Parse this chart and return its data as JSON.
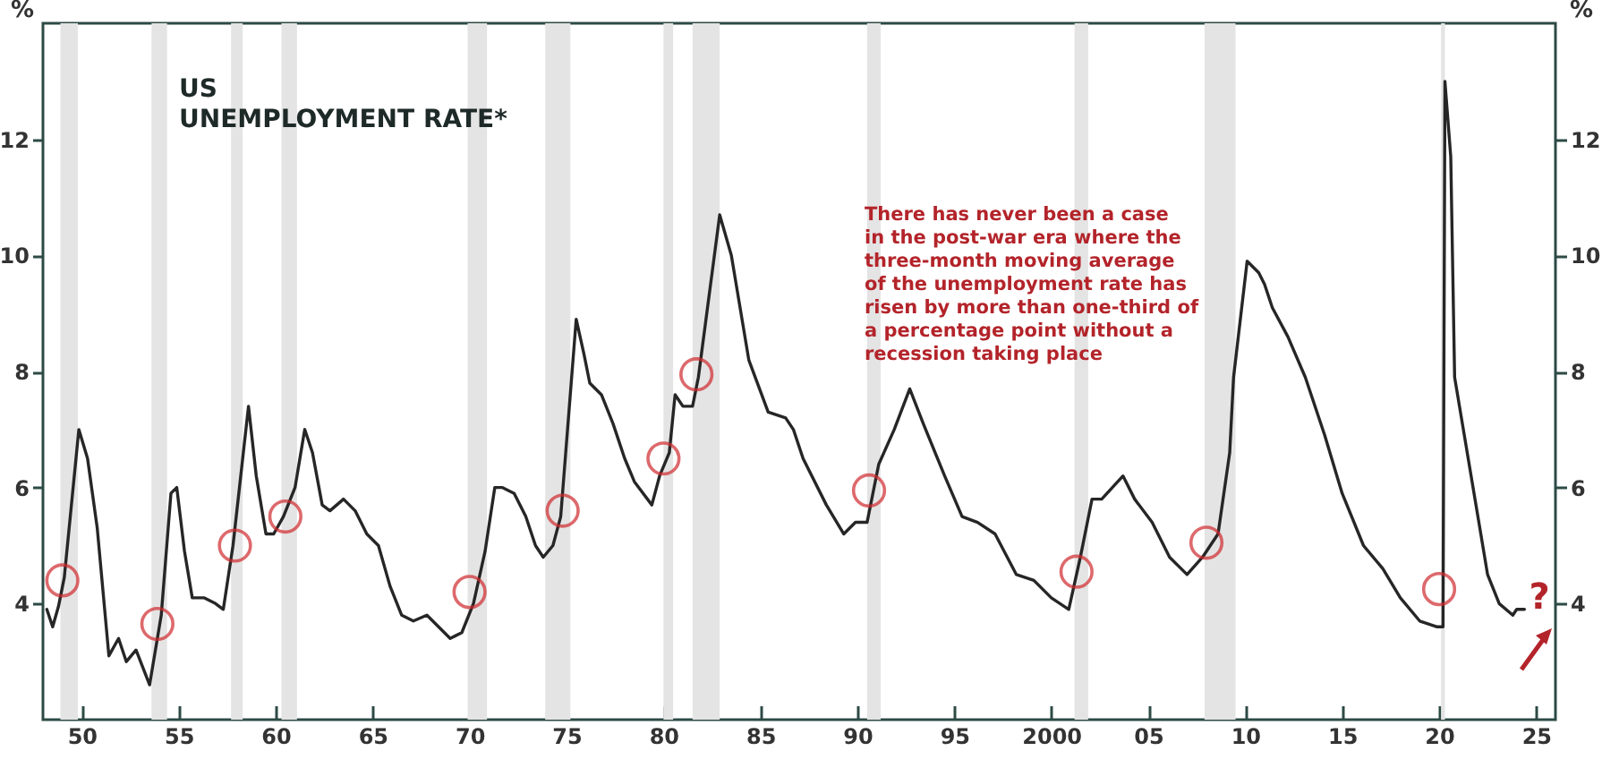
{
  "chart_data": {
    "type": "line",
    "title": "US\nUNEMPLOYMENT RATE*",
    "ylabel": "%",
    "y2label": "%",
    "series": [
      {
        "color": "#262626",
        "line_style": "solid",
        "x": [
          1948.2,
          1948.5,
          1948.8,
          1949.1,
          1949.85,
          1950.3,
          1950.8,
          1951.4,
          1951.9,
          1952.3,
          1952.8,
          1953.5,
          1953.8,
          1954.1,
          1954.6,
          1954.9,
          1955.3,
          1955.7,
          1956.3,
          1956.9,
          1957.3,
          1957.8,
          1958.6,
          1959.0,
          1959.5,
          1959.9,
          1960.4,
          1961.0,
          1961.5,
          1961.9,
          1962.4,
          1962.8,
          1963.5,
          1964.1,
          1964.7,
          1965.3,
          1965.9,
          1966.5,
          1967.1,
          1967.8,
          1968.4,
          1969.0,
          1969.6,
          1970.2,
          1970.8,
          1971.3,
          1971.7,
          1972.3,
          1972.9,
          1973.4,
          1973.8,
          1974.3,
          1974.7,
          1975.5,
          1975.9,
          1976.2,
          1976.8,
          1977.4,
          1978.0,
          1978.5,
          1979.4,
          1979.8,
          1980.3,
          1980.6,
          1981.0,
          1981.5,
          1981.8,
          1982.9,
          1983.5,
          1984.4,
          1985.4,
          1986.3,
          1986.7,
          1987.2,
          1988.4,
          1989.3,
          1989.9,
          1990.5,
          1991.1,
          1991.9,
          1992.7,
          1993.4,
          1994.5,
          1995.4,
          1996.2,
          1997.1,
          1998.2,
          1999.1,
          2000.0,
          2000.9,
          2001.5,
          2002.1,
          2002.6,
          2003.7,
          2004.3,
          2005.2,
          2006.1,
          2007.0,
          2007.8,
          2008.6,
          2009.2,
          2009.4,
          2010.1,
          2010.7,
          2011.0,
          2011.4,
          2012.2,
          2013.1,
          2014.1,
          2015.0,
          2016.1,
          2017.1,
          2018.0,
          2019.0,
          2019.9,
          2020.2,
          2020.3,
          2020.6,
          2020.8,
          2021.4,
          2022.0,
          2022.5,
          2023.1,
          2023.8,
          2024.0,
          2024.4
        ],
        "values": [
          3.9,
          3.6,
          3.95,
          4.45,
          7.0,
          6.5,
          5.3,
          3.1,
          3.4,
          3.0,
          3.2,
          2.6,
          3.2,
          3.8,
          5.9,
          6.0,
          4.9,
          4.1,
          4.1,
          4.0,
          3.9,
          5.0,
          7.4,
          6.2,
          5.2,
          5.2,
          5.5,
          6.0,
          7.0,
          6.6,
          5.7,
          5.6,
          5.8,
          5.6,
          5.2,
          5.0,
          4.3,
          3.8,
          3.7,
          3.8,
          3.6,
          3.4,
          3.5,
          4.0,
          4.9,
          6.0,
          6.0,
          5.9,
          5.5,
          5.0,
          4.8,
          5.0,
          5.5,
          8.9,
          8.3,
          7.8,
          7.6,
          7.1,
          6.5,
          6.1,
          5.7,
          6.2,
          6.6,
          7.6,
          7.4,
          7.4,
          7.9,
          10.7,
          10.0,
          8.2,
          7.3,
          7.2,
          7.0,
          6.5,
          5.7,
          5.2,
          5.4,
          5.4,
          6.4,
          7.0,
          7.7,
          7.1,
          6.2,
          5.5,
          5.4,
          5.2,
          4.5,
          4.4,
          4.1,
          3.9,
          4.8,
          5.8,
          5.8,
          6.2,
          5.8,
          5.4,
          4.8,
          4.5,
          4.8,
          5.2,
          6.6,
          7.9,
          9.9,
          9.7,
          9.5,
          9.1,
          8.6,
          7.9,
          6.9,
          5.9,
          5.0,
          4.6,
          4.1,
          3.7,
          3.6,
          3.6,
          13.0,
          11.7,
          7.9,
          6.7,
          5.5,
          4.5,
          4.0,
          3.8,
          3.9,
          3.9
        ]
      },
      {
        "type": "scatter",
        "color": "#d02a2e",
        "marker": "circle",
        "x": [
          1949.0,
          1953.9,
          1957.9,
          1960.5,
          1970.0,
          1974.8,
          1980.0,
          1981.7,
          1990.6,
          2001.3,
          2008.0,
          2020.0
        ],
        "values": [
          4.4,
          3.65,
          5.0,
          5.5,
          4.2,
          5.6,
          6.5,
          7.95,
          5.95,
          4.55,
          5.05,
          4.25
        ]
      }
    ],
    "xlim": [
      1948,
      2026
    ],
    "xticks": [
      {
        "value": 1950,
        "label": "50"
      },
      {
        "value": 1955,
        "label": "55"
      },
      {
        "value": 1960,
        "label": "60"
      },
      {
        "value": 1965,
        "label": "65"
      },
      {
        "value": 1970,
        "label": "70"
      },
      {
        "value": 1975,
        "label": "75"
      },
      {
        "value": 1980,
        "label": "80"
      },
      {
        "value": 1985,
        "label": "85"
      },
      {
        "value": 1990,
        "label": "90"
      },
      {
        "value": 1995,
        "label": "95"
      },
      2000,
      {
        "value": 2005,
        "label": "05"
      },
      {
        "value": 2010,
        "label": "10"
      },
      {
        "value": 2015,
        "label": "15"
      },
      {
        "value": 2020,
        "label": "20"
      },
      {
        "value": 2025,
        "label": "25"
      }
    ],
    "ylim": [
      2,
      14
    ],
    "yticks": [
      4,
      6,
      8,
      10,
      12
    ],
    "y2lim": [
      2,
      14
    ],
    "y2ticks": [
      4,
      6,
      8,
      10,
      12
    ],
    "bands": [
      {
        "axis": "x",
        "from": 1948.9,
        "to": 1949.8,
        "color": "#e4e4e4"
      },
      {
        "axis": "x",
        "from": 1953.6,
        "to": 1954.4,
        "color": "#e4e4e4"
      },
      {
        "axis": "x",
        "from": 1957.7,
        "to": 1958.3,
        "color": "#e4e4e4"
      },
      {
        "axis": "x",
        "from": 1960.3,
        "to": 1961.1,
        "color": "#e4e4e4"
      },
      {
        "axis": "x",
        "from": 1969.9,
        "to": 1970.9,
        "color": "#e4e4e4"
      },
      {
        "axis": "x",
        "from": 1973.9,
        "to": 1975.2,
        "color": "#e4e4e4"
      },
      {
        "axis": "x",
        "from": 1980.0,
        "to": 1980.5,
        "color": "#e4e4e4"
      },
      {
        "axis": "x",
        "from": 1981.5,
        "to": 1982.9,
        "color": "#e4e4e4"
      },
      {
        "axis": "x",
        "from": 1990.5,
        "to": 1991.2,
        "color": "#e4e4e4"
      },
      {
        "axis": "x",
        "from": 2001.2,
        "to": 2001.9,
        "color": "#e4e4e4"
      },
      {
        "axis": "x",
        "from": 2007.9,
        "to": 2009.5,
        "color": "#e4e4e4"
      },
      {
        "axis": "x",
        "from": 2020.1,
        "to": 2020.3,
        "color": "#e4e4e4"
      }
    ],
    "annotations": [
      "There has never been a case\nin the post-war era where the\nthree-month moving average\nof the unemployment rate has\nrisen by more than one-third of\na percentage point without a\nrecession taking place",
      "?"
    ],
    "grid": false
  }
}
